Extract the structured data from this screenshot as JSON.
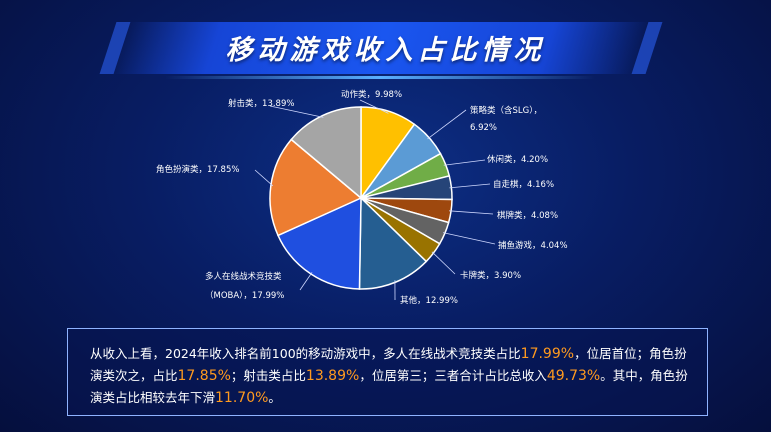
{
  "title": "移动游戏收入占比情况",
  "chart_data": {
    "type": "pie",
    "slices": [
      {
        "label": "动作类",
        "pct": "9.98%",
        "value": 9.98,
        "color": "#ffc000"
      },
      {
        "label": "策略类（含SLG）",
        "pct": "6.92%",
        "value": 6.92,
        "color": "#5b9bd5"
      },
      {
        "label": "休闲类",
        "pct": "4.20%",
        "value": 4.2,
        "color": "#70ad47"
      },
      {
        "label": "自走棋",
        "pct": "4.16%",
        "value": 4.16,
        "color": "#264478"
      },
      {
        "label": "棋牌类",
        "pct": "4.08%",
        "value": 4.08,
        "color": "#9e480e"
      },
      {
        "label": "捕鱼游戏",
        "pct": "4.04%",
        "value": 4.04,
        "color": "#636363"
      },
      {
        "label": "卡牌类",
        "pct": "3.90%",
        "value": 3.9,
        "color": "#997300"
      },
      {
        "label": "其他",
        "pct": "12.99%",
        "value": 12.99,
        "color": "#255e91"
      },
      {
        "label": "多人在线战术竞技类（MOBA）",
        "pct": "17.99%",
        "value": 17.99,
        "color": "#1f4fe0"
      },
      {
        "label": "角色扮演类",
        "pct": "17.85%",
        "value": 17.85,
        "color": "#ed7d31"
      },
      {
        "label": "射击类",
        "pct": "13.89%",
        "value": 13.89,
        "color": "#a5a5a5"
      }
    ]
  },
  "summary": {
    "t1": "从收入上看，2024年收入排名前100的移动游戏中，多人在线战术竞技类占比",
    "v1": "17.99%",
    "t2": "，位居首位；角色扮演类次之，占比",
    "v2": "17.85%",
    "t3": "；射击类占比",
    "v3": "13.89%",
    "t4": "，位居第三；三者合计占比总收入",
    "v4": "49.73%",
    "t5": "。其中，角色扮演类占比相较去年下滑",
    "v5": "11.70%",
    "t6": "。"
  }
}
